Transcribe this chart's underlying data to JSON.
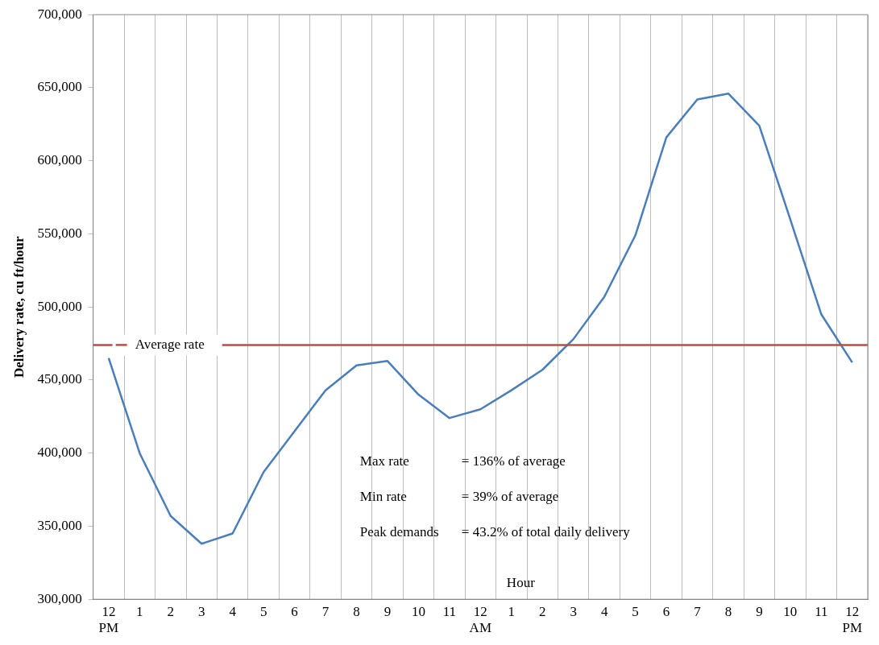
{
  "chart_data": {
    "type": "line",
    "xlabel": "Hour",
    "ylabel": "Delivery rate, cu ft/hour",
    "categories": [
      "12 PM",
      "1",
      "2",
      "3",
      "4",
      "5",
      "6",
      "7",
      "8",
      "9",
      "10",
      "11",
      "12 AM",
      "1",
      "2",
      "3",
      "4",
      "5",
      "6",
      "7",
      "8",
      "9",
      "10",
      "11",
      "12 PM"
    ],
    "series": [
      {
        "color": "#4a7ebb",
        "values": [
          465000,
          400000,
          357000,
          338000,
          345000,
          387000,
          415000,
          443000,
          460000,
          463000,
          440000,
          424000,
          430000,
          443000,
          457000,
          478000,
          507000,
          549000,
          616000,
          642000,
          646000,
          624000,
          560000,
          495000,
          462000
        ]
      }
    ],
    "ylim": [
      300000,
      700000
    ],
    "yticks": [
      {
        "value": 300000,
        "label": "300,000"
      },
      {
        "value": 350000,
        "label": "350,000"
      },
      {
        "value": 400000,
        "label": "400,000"
      },
      {
        "value": 450000,
        "label": "450,000"
      },
      {
        "value": 500000,
        "label": "500,000"
      },
      {
        "value": 550000,
        "label": "550,000"
      },
      {
        "value": 600000,
        "label": "600,000"
      },
      {
        "value": 650000,
        "label": "650,000"
      },
      {
        "value": 700000,
        "label": "700,000"
      }
    ],
    "grid": "x",
    "marker": "none",
    "line_style": "solid",
    "ref_lines": [
      {
        "axis": "y",
        "value": 474000,
        "label": "Average rate",
        "color": "#be4b48"
      }
    ],
    "annotations": [
      "Max rate = 136% of average",
      "Min rate = 39% of average",
      "Peak demands = 43.2% of total daily delivery"
    ]
  }
}
